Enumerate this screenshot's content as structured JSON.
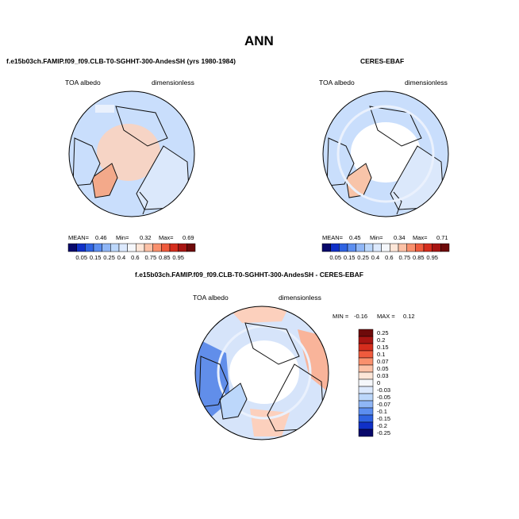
{
  "page_title": "ANN",
  "panels": [
    {
      "title": "f.e15b03ch.FAMIP.f09_f09.CLB-T0-SGHHT-300-AndesSH (yrs 1980-1984)",
      "var_label": "TOA albedo",
      "units_label": "dimensionless",
      "stats": {
        "mean_label": "MEAN=",
        "mean": "0.46",
        "min_label": "Min=",
        "min": "0.32",
        "max_label": "Max=",
        "max": "0.69"
      }
    },
    {
      "title": "CERES-EBAF",
      "var_label": "TOA albedo",
      "units_label": "dimensionless",
      "stats": {
        "mean_label": "MEAN=",
        "mean": "0.45",
        "min_label": "Min=",
        "min": "0.34",
        "max_label": "Max=",
        "max": "0.71"
      }
    },
    {
      "title": "f.e15b03ch.FAMIP.f09_f09.CLB-T0-SGHHT-300-AndesSH - CERES-EBAF",
      "var_label": "TOA albedo",
      "units_label": "dimensionless",
      "stats": {
        "min_label": "MIN =",
        "min": "-0.16",
        "max_label": "MAX =",
        "max": "0.12"
      }
    }
  ],
  "colorbar_top": {
    "labels": [
      "0.05",
      "0.15",
      "0.25",
      "0.4",
      "0.6",
      "0.75",
      "0.85",
      "0.95"
    ],
    "colors": [
      "#08086b",
      "#1030c8",
      "#2f63e2",
      "#5c8ef0",
      "#8fb6f6",
      "#bcd7fb",
      "#dce9fd",
      "#f5f7fb",
      "#fde6d8",
      "#fcc1a6",
      "#f9906d",
      "#ef5b3d",
      "#d52d1d",
      "#a81512",
      "#6e0a0a"
    ]
  },
  "colorbar_diff": {
    "labels": [
      "0.25",
      "0.2",
      "0.15",
      "0.1",
      "0.07",
      "0.05",
      "0.03",
      "0",
      "-0.03",
      "-0.05",
      "-0.07",
      "-0.1",
      "-0.15",
      "-0.2",
      "-0.25"
    ],
    "colors": [
      "#6e0a0a",
      "#a81512",
      "#d52d1d",
      "#ef5b3d",
      "#f9906d",
      "#fcc1a6",
      "#fde6d8",
      "#f5f7fb",
      "#dce9fd",
      "#bcd7fb",
      "#8fb6f6",
      "#5c8ef0",
      "#2f63e2",
      "#1030c8",
      "#08086b"
    ]
  },
  "map_colors": {
    "ocean": "#c9defc",
    "land_model": "#fbd3bf",
    "land_obs": "#ffffff",
    "diff_base": "#d6e4fa",
    "diff_blue": "#4c7fe6",
    "diff_red": "#f9b49a",
    "coast": "#111111"
  }
}
